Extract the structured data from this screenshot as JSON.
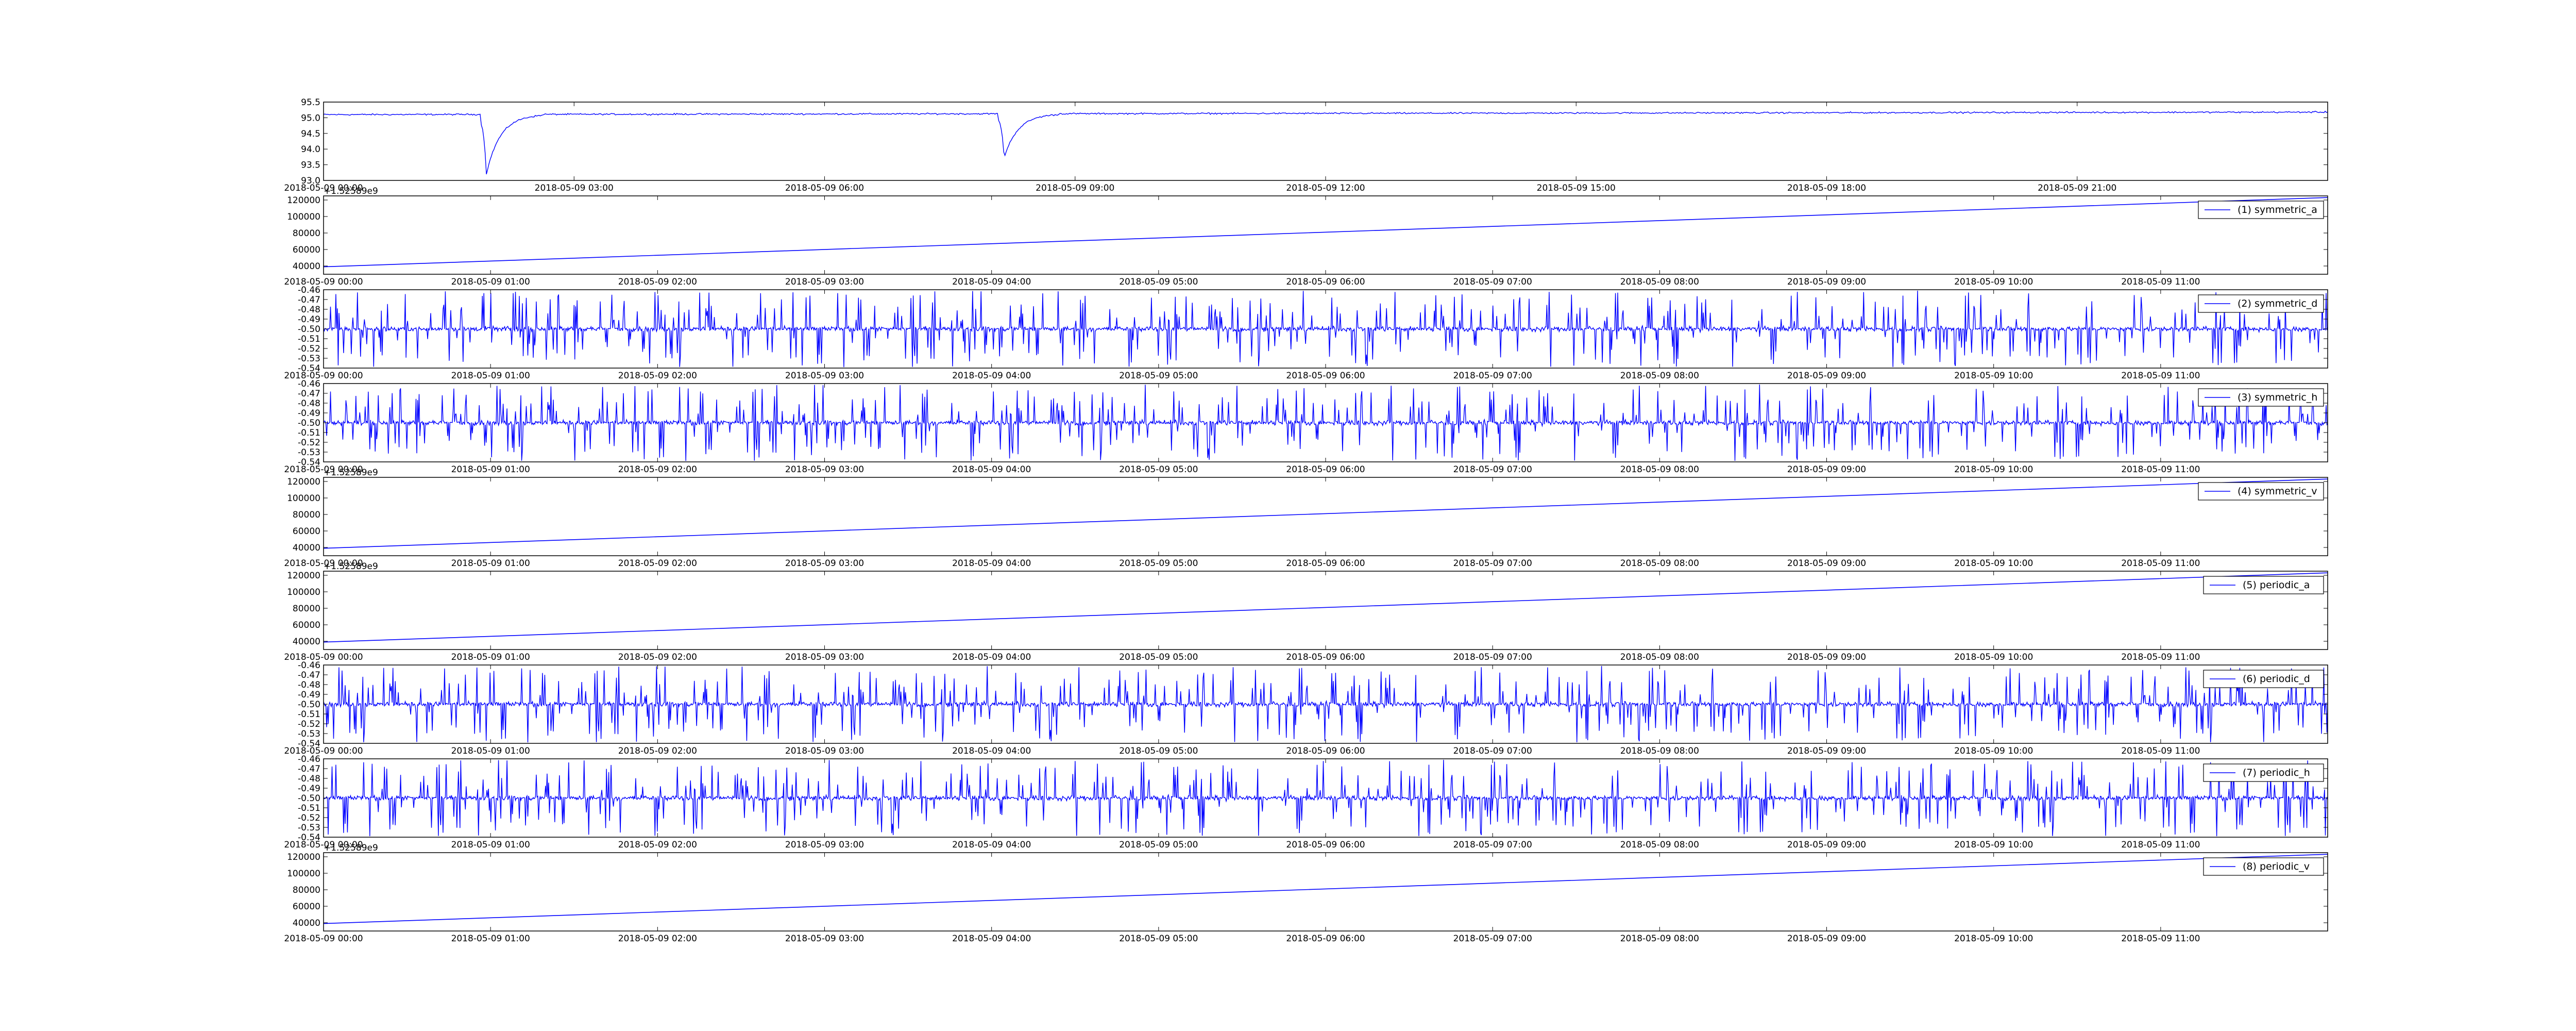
{
  "chart_data": [
    {
      "type": "line",
      "name": "",
      "series": [],
      "x_range": [
        "2018-05-09 00:00",
        "2018-05-10 00:00"
      ],
      "x_ticks": [
        "2018-05-09 00:00",
        "2018-05-09 03:00",
        "2018-05-09 06:00",
        "2018-05-09 09:00",
        "2018-05-09 12:00",
        "2018-05-09 15:00",
        "2018-05-09 18:00",
        "2018-05-09 21:00"
      ],
      "ylim": [
        93.0,
        95.5
      ],
      "y_ticks": [
        "93.0",
        "93.5",
        "94.0",
        "94.5",
        "95.0",
        "95.5"
      ],
      "offset_label": "",
      "baseline": 95.1,
      "dips": [
        {
          "x": "2018-05-09 01:57",
          "y": 93.2
        },
        {
          "x": "2018-05-09 08:09",
          "y": 93.7
        }
      ],
      "grid": false,
      "legend": ""
    },
    {
      "type": "line",
      "legend_label": "(1) symmetric_a",
      "x_range": [
        "2018-05-09 00:00",
        "2018-05-09 12:00"
      ],
      "x_ticks": [
        "2018-05-09 00:00",
        "2018-05-09 01:00",
        "2018-05-09 02:00",
        "2018-05-09 03:00",
        "2018-05-09 04:00",
        "2018-05-09 05:00",
        "2018-05-09 06:00",
        "2018-05-09 07:00",
        "2018-05-09 08:00",
        "2018-05-09 09:00",
        "2018-05-09 10:00",
        "2018-05-09 11:00"
      ],
      "ylim": [
        30000,
        125000
      ],
      "y_ticks": [
        "40000",
        "60000",
        "80000",
        "100000",
        "120000"
      ],
      "offset_label": "+1.52589e9",
      "start_value": 39000,
      "end_value": 123000,
      "grid": false,
      "legend": "right"
    },
    {
      "type": "line",
      "legend_label": "(2) symmetric_d",
      "x_range": [
        "2018-05-09 00:00",
        "2018-05-09 12:00"
      ],
      "x_ticks": [
        "2018-05-09 00:00",
        "2018-05-09 01:00",
        "2018-05-09 02:00",
        "2018-05-09 03:00",
        "2018-05-09 04:00",
        "2018-05-09 05:00",
        "2018-05-09 06:00",
        "2018-05-09 07:00",
        "2018-05-09 08:00",
        "2018-05-09 09:00",
        "2018-05-09 10:00",
        "2018-05-09 11:00"
      ],
      "ylim": [
        -0.54,
        -0.46
      ],
      "y_ticks": [
        "-0.54",
        "-0.53",
        "-0.52",
        "-0.51",
        "-0.50",
        "-0.49",
        "-0.48",
        "-0.47",
        "-0.46"
      ],
      "offset_label": "",
      "center": -0.5,
      "grid": false,
      "legend": "right"
    },
    {
      "type": "line",
      "legend_label": "(3) symmetric_h",
      "x_range": [
        "2018-05-09 00:00",
        "2018-05-09 12:00"
      ],
      "x_ticks": [
        "2018-05-09 00:00",
        "2018-05-09 01:00",
        "2018-05-09 02:00",
        "2018-05-09 03:00",
        "2018-05-09 04:00",
        "2018-05-09 05:00",
        "2018-05-09 06:00",
        "2018-05-09 07:00",
        "2018-05-09 08:00",
        "2018-05-09 09:00",
        "2018-05-09 10:00",
        "2018-05-09 11:00"
      ],
      "ylim": [
        -0.54,
        -0.46
      ],
      "y_ticks": [
        "-0.54",
        "-0.53",
        "-0.52",
        "-0.51",
        "-0.50",
        "-0.49",
        "-0.48",
        "-0.47",
        "-0.46"
      ],
      "offset_label": "",
      "center": -0.5,
      "grid": false,
      "legend": "right"
    },
    {
      "type": "line",
      "legend_label": "(4) symmetric_v",
      "x_range": [
        "2018-05-09 00:00",
        "2018-05-09 12:00"
      ],
      "x_ticks": [
        "2018-05-09 00:00",
        "2018-05-09 01:00",
        "2018-05-09 02:00",
        "2018-05-09 03:00",
        "2018-05-09 04:00",
        "2018-05-09 05:00",
        "2018-05-09 06:00",
        "2018-05-09 07:00",
        "2018-05-09 08:00",
        "2018-05-09 09:00",
        "2018-05-09 10:00",
        "2018-05-09 11:00"
      ],
      "ylim": [
        30000,
        125000
      ],
      "y_ticks": [
        "40000",
        "60000",
        "80000",
        "100000",
        "120000"
      ],
      "offset_label": "+1.52589e9",
      "start_value": 39000,
      "end_value": 123000,
      "grid": false,
      "legend": "right"
    },
    {
      "type": "line",
      "legend_label": "(5) periodic_a",
      "x_range": [
        "2018-05-09 00:00",
        "2018-05-09 12:00"
      ],
      "x_ticks": [
        "2018-05-09 00:00",
        "2018-05-09 01:00",
        "2018-05-09 02:00",
        "2018-05-09 03:00",
        "2018-05-09 04:00",
        "2018-05-09 05:00",
        "2018-05-09 06:00",
        "2018-05-09 07:00",
        "2018-05-09 08:00",
        "2018-05-09 09:00",
        "2018-05-09 10:00",
        "2018-05-09 11:00"
      ],
      "ylim": [
        30000,
        125000
      ],
      "y_ticks": [
        "40000",
        "60000",
        "80000",
        "100000",
        "120000"
      ],
      "offset_label": "+1.52589e9",
      "start_value": 39000,
      "end_value": 123000,
      "grid": false,
      "legend": "right"
    },
    {
      "type": "line",
      "legend_label": "(6) periodic_d",
      "x_range": [
        "2018-05-09 00:00",
        "2018-05-09 12:00"
      ],
      "x_ticks": [
        "2018-05-09 00:00",
        "2018-05-09 01:00",
        "2018-05-09 02:00",
        "2018-05-09 03:00",
        "2018-05-09 04:00",
        "2018-05-09 05:00",
        "2018-05-09 06:00",
        "2018-05-09 07:00",
        "2018-05-09 08:00",
        "2018-05-09 09:00",
        "2018-05-09 10:00",
        "2018-05-09 11:00"
      ],
      "ylim": [
        -0.54,
        -0.46
      ],
      "y_ticks": [
        "-0.54",
        "-0.53",
        "-0.52",
        "-0.51",
        "-0.50",
        "-0.49",
        "-0.48",
        "-0.47",
        "-0.46"
      ],
      "offset_label": "",
      "center": -0.5,
      "grid": false,
      "legend": "right"
    },
    {
      "type": "line",
      "legend_label": "(7) periodic_h",
      "x_range": [
        "2018-05-09 00:00",
        "2018-05-09 12:00"
      ],
      "x_ticks": [
        "2018-05-09 00:00",
        "2018-05-09 01:00",
        "2018-05-09 02:00",
        "2018-05-09 03:00",
        "2018-05-09 04:00",
        "2018-05-09 05:00",
        "2018-05-09 06:00",
        "2018-05-09 07:00",
        "2018-05-09 08:00",
        "2018-05-09 09:00",
        "2018-05-09 10:00",
        "2018-05-09 11:00"
      ],
      "ylim": [
        -0.54,
        -0.46
      ],
      "y_ticks": [
        "-0.54",
        "-0.53",
        "-0.52",
        "-0.51",
        "-0.50",
        "-0.49",
        "-0.48",
        "-0.47",
        "-0.46"
      ],
      "offset_label": "",
      "center": -0.5,
      "grid": false,
      "legend": "right"
    },
    {
      "type": "line",
      "legend_label": "(8) periodic_v",
      "x_range": [
        "2018-05-09 00:00",
        "2018-05-09 12:00"
      ],
      "x_ticks": [
        "2018-05-09 00:00",
        "2018-05-09 01:00",
        "2018-05-09 02:00",
        "2018-05-09 03:00",
        "2018-05-09 04:00",
        "2018-05-09 05:00",
        "2018-05-09 06:00",
        "2018-05-09 07:00",
        "2018-05-09 08:00",
        "2018-05-09 09:00",
        "2018-05-09 10:00",
        "2018-05-09 11:00"
      ],
      "ylim": [
        30000,
        125000
      ],
      "y_ticks": [
        "40000",
        "60000",
        "80000",
        "100000",
        "120000"
      ],
      "offset_label": "+1.52589e9",
      "start_value": 39000,
      "end_value": 123000,
      "grid": false,
      "legend": "right"
    }
  ],
  "colors": {
    "line": "#0000ff",
    "axes": "#000000",
    "background": "#ffffff"
  }
}
